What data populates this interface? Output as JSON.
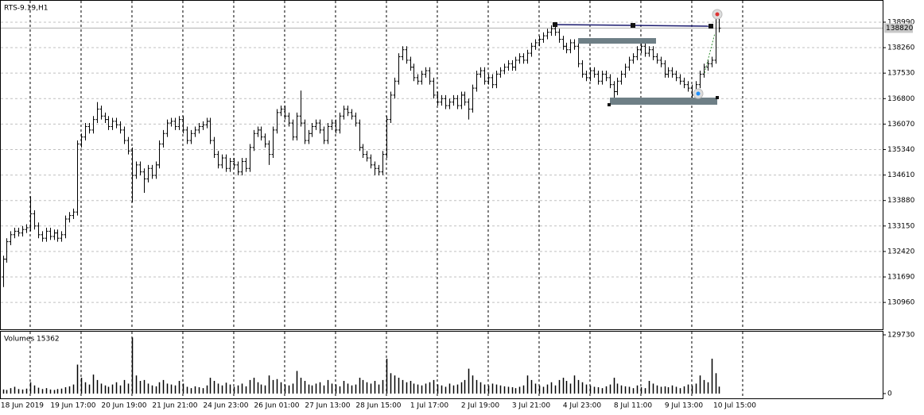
{
  "chart_data": {
    "type": "ohlc",
    "title": "RTS-9.19,H1",
    "volume_title": "Volumes 15362",
    "current_price": 138820,
    "ylim": [
      130190,
      139580
    ],
    "yticks": [
      130960,
      131690,
      132420,
      133150,
      133880,
      134610,
      135340,
      136070,
      136800,
      137530,
      138260,
      138990
    ],
    "volume_ylim": [
      0,
      129730
    ],
    "volume_yticks": [
      0,
      129730
    ],
    "grid": true,
    "color": "#000000",
    "categories": [
      null,
      null,
      null,
      null,
      null,
      null,
      null,
      "18 Jun 2019",
      null,
      null,
      null,
      null,
      null,
      null,
      null,
      null,
      null,
      null,
      null,
      null,
      "19 Jun 17:00",
      null,
      null,
      null,
      null,
      null,
      null,
      null,
      null,
      null,
      null,
      null,
      null,
      "20 Jun 19:00",
      null,
      null,
      null,
      null,
      null,
      null,
      null,
      null,
      null,
      null,
      null,
      null,
      "21 Jun 21:00",
      null,
      null,
      null,
      null,
      null,
      null,
      null,
      null,
      null,
      null,
      null,
      null,
      "24 Jun 23:00",
      null,
      null,
      null,
      null,
      null,
      null,
      null,
      null,
      null,
      null,
      null,
      null,
      "26 Jun 01:00",
      null,
      null,
      null,
      null,
      null,
      null,
      null,
      null,
      null,
      null,
      null,
      null,
      "27 Jun 13:00",
      null,
      null,
      null,
      null,
      null,
      null,
      null,
      null,
      null,
      null,
      null,
      null,
      "28 Jun 15:00",
      null,
      null,
      null,
      null,
      null,
      null,
      null,
      null,
      null,
      null,
      null,
      null,
      "1 Jul 17:00",
      null,
      null,
      null,
      null,
      null,
      null,
      null,
      null,
      null,
      null,
      null,
      null,
      "2 Jul 19:00",
      null,
      null,
      null,
      null,
      null,
      null,
      null,
      null,
      null,
      null,
      null,
      null,
      "3 Jul 21:00",
      null,
      null,
      null,
      null,
      null,
      null,
      null,
      null,
      null,
      null,
      null,
      null,
      "4 Jul 23:00",
      null,
      null,
      null,
      null,
      null,
      null,
      null,
      null,
      null,
      null,
      null,
      null,
      "8 Jul 11:00",
      null,
      null,
      null,
      null,
      null,
      null,
      null,
      null,
      null,
      null,
      null,
      null,
      "9 Jul 13:00",
      null,
      null,
      null,
      null,
      null,
      null,
      null,
      null,
      null,
      null,
      null,
      null,
      "10 Jul 15:00"
    ],
    "open": [
      131690,
      132200,
      132700,
      132900,
      133000,
      132950,
      133050,
      133100,
      133500,
      133150,
      132900,
      132800,
      133000,
      132850,
      132950,
      132800,
      132900,
      133350,
      133450,
      133550,
      135500,
      135700,
      136000,
      135900,
      136200,
      136500,
      136300,
      136200,
      136000,
      136150,
      136050,
      135900,
      135600,
      135300,
      134600,
      134900,
      134700,
      134500,
      134800,
      134600,
      134900,
      135500,
      135800,
      136100,
      136150,
      136000,
      136200,
      135900,
      135600,
      135800,
      135900,
      136000,
      136050,
      136150,
      135600,
      135200,
      134900,
      135100,
      134800,
      135000,
      134900,
      134700,
      135000,
      134800,
      135400,
      135800,
      135900,
      135700,
      135500,
      135200,
      135900,
      136400,
      136500,
      136300,
      136100,
      135700,
      136300,
      136100,
      135600,
      135800,
      136000,
      136100,
      135900,
      135600,
      136000,
      136100,
      135900,
      136300,
      136500,
      136400,
      136300,
      136100,
      135400,
      135200,
      135100,
      134900,
      134800,
      134700,
      135200,
      136200,
      136900,
      137300,
      138000,
      138200,
      137900,
      137700,
      137400,
      137300,
      137500,
      137600,
      137300,
      136900,
      136700,
      136800,
      136600,
      136700,
      136800,
      136600,
      136900,
      136700,
      136500,
      137100,
      137500,
      137600,
      137300,
      137400,
      137200,
      137500,
      137600,
      137700,
      137800,
      137700,
      137900,
      138000,
      137900,
      138100,
      138300,
      138400,
      138500,
      138600,
      138700,
      138800,
      138700,
      138500,
      138300,
      138200,
      138400,
      138300,
      137800,
      137500,
      137400,
      137600,
      137500,
      137300,
      137500,
      137400,
      137200,
      137000,
      137300,
      137500,
      137700,
      137900,
      138000,
      138200,
      138300,
      138100,
      138200,
      138000,
      137900,
      137800,
      137500,
      137600,
      137500,
      137400,
      137300,
      137200,
      137100,
      136900,
      137200,
      137500,
      137700,
      137800,
      137900,
      139100,
      null,
      null,
      null,
      null,
      null,
      null
    ],
    "high": [
      132300,
      132800,
      133000,
      133100,
      133100,
      133150,
      133200,
      134000,
      133600,
      133250,
      133000,
      133100,
      133100,
      133050,
      133050,
      133000,
      133450,
      133550,
      133650,
      135600,
      135800,
      136100,
      136100,
      136300,
      136700,
      136600,
      136400,
      136300,
      136250,
      136250,
      136150,
      136000,
      135700,
      135400,
      135000,
      135000,
      134800,
      134900,
      134900,
      135000,
      135600,
      135900,
      136200,
      136250,
      136250,
      136300,
      136300,
      136000,
      135900,
      136000,
      136100,
      136150,
      136250,
      136250,
      135700,
      135300,
      135200,
      135200,
      135100,
      135100,
      135000,
      135100,
      135100,
      135500,
      135900,
      136000,
      136000,
      135800,
      135600,
      136000,
      136500,
      136600,
      136600,
      136400,
      136200,
      136400,
      137030,
      136200,
      135900,
      136100,
      136200,
      136200,
      136000,
      136100,
      136200,
      136200,
      136400,
      136600,
      136600,
      136500,
      136400,
      136200,
      135500,
      135300,
      135200,
      135000,
      134900,
      135300,
      136300,
      137000,
      137400,
      138100,
      138300,
      138300,
      138000,
      137800,
      137500,
      137600,
      137700,
      137700,
      137400,
      137000,
      136900,
      136900,
      136800,
      136900,
      136900,
      137000,
      137000,
      136800,
      137200,
      137600,
      137700,
      137700,
      137500,
      137500,
      137600,
      137700,
      137800,
      137900,
      137900,
      138000,
      138100,
      138100,
      138200,
      138400,
      138500,
      138600,
      138700,
      138800,
      138900,
      138900,
      138800,
      138600,
      138400,
      138500,
      138500,
      138400,
      137900,
      137600,
      137700,
      137700,
      137600,
      137600,
      137600,
      137500,
      137300,
      137400,
      137600,
      137800,
      138000,
      138100,
      138300,
      138400,
      138400,
      138300,
      138300,
      138100,
      138000,
      137900,
      137700,
      137700,
      137600,
      137500,
      137400,
      137300,
      137200,
      137300,
      137600,
      137800,
      137900,
      138000,
      139220,
      139150,
      null,
      null,
      null,
      null,
      null,
      null
    ],
    "low": [
      131400,
      132100,
      132600,
      132800,
      132850,
      132850,
      132950,
      133000,
      133050,
      132800,
      132700,
      132700,
      132750,
      132750,
      132700,
      132700,
      132800,
      133250,
      133350,
      133450,
      135400,
      135600,
      135800,
      135800,
      136100,
      136200,
      136100,
      135900,
      135900,
      135950,
      135800,
      135500,
      135200,
      133830,
      134500,
      134600,
      134100,
      134400,
      134500,
      134500,
      134800,
      135400,
      135700,
      136000,
      135900,
      135900,
      135800,
      135500,
      135500,
      135700,
      135800,
      135900,
      135950,
      135500,
      135100,
      134800,
      134800,
      134700,
      134700,
      134800,
      134600,
      134600,
      134700,
      134700,
      135300,
      135700,
      135600,
      135400,
      134900,
      135100,
      135800,
      136300,
      136200,
      136000,
      135600,
      135600,
      136000,
      135500,
      135500,
      135700,
      135900,
      135800,
      135500,
      135500,
      135900,
      135800,
      135800,
      136200,
      136300,
      136200,
      136000,
      135300,
      135100,
      135000,
      134800,
      134600,
      134600,
      134600,
      135100,
      136100,
      136800,
      137200,
      137900,
      137800,
      137600,
      137300,
      137200,
      137200,
      137400,
      137200,
      136800,
      136600,
      136600,
      136500,
      136500,
      136600,
      136500,
      136500,
      136600,
      136200,
      136400,
      137000,
      137400,
      137200,
      137200,
      137100,
      137100,
      137400,
      137500,
      137600,
      137600,
      137600,
      137800,
      137800,
      137800,
      138000,
      138200,
      138300,
      138400,
      138500,
      138600,
      138600,
      138400,
      138200,
      138100,
      138100,
      138200,
      137700,
      137400,
      137300,
      137300,
      137400,
      137200,
      137200,
      137300,
      137100,
      136800,
      136900,
      137200,
      137400,
      137600,
      137800,
      137900,
      138100,
      138000,
      138000,
      137900,
      137800,
      137700,
      137400,
      137400,
      137400,
      137300,
      137200,
      137100,
      137000,
      136800,
      136800,
      137100,
      137400,
      137600,
      137700,
      137800,
      138700,
      null,
      null,
      null,
      null,
      null,
      null
    ],
    "close": [
      132200,
      132700,
      132900,
      133000,
      132950,
      133050,
      133100,
      133500,
      133150,
      132900,
      132800,
      133000,
      132850,
      132950,
      132800,
      132900,
      133350,
      133450,
      133550,
      135500,
      135700,
      136000,
      135900,
      136200,
      136500,
      136300,
      136200,
      136000,
      136150,
      136050,
      135900,
      135600,
      135300,
      134600,
      134900,
      134700,
      134500,
      134800,
      134600,
      134900,
      135500,
      135800,
      136100,
      136150,
      136000,
      136200,
      135900,
      135600,
      135800,
      135900,
      136000,
      136050,
      136150,
      135600,
      135200,
      134900,
      135100,
      134800,
      135000,
      134900,
      134700,
      135000,
      134800,
      135400,
      135800,
      135900,
      135700,
      135500,
      135200,
      135900,
      136400,
      136500,
      136300,
      136100,
      135700,
      136300,
      136100,
      135600,
      135800,
      136000,
      136100,
      135900,
      135600,
      136000,
      136100,
      135900,
      136300,
      136500,
      136400,
      136300,
      136100,
      135400,
      135200,
      135100,
      134900,
      134800,
      134700,
      135200,
      136200,
      136900,
      137300,
      138000,
      138200,
      137900,
      137700,
      137400,
      137300,
      137500,
      137600,
      137300,
      136900,
      136700,
      136800,
      136600,
      136700,
      136800,
      136600,
      136900,
      136700,
      136500,
      137100,
      137500,
      137600,
      137300,
      137400,
      137200,
      137500,
      137600,
      137700,
      137800,
      137700,
      137900,
      138000,
      137900,
      138100,
      138300,
      138400,
      138500,
      138600,
      138700,
      138800,
      138700,
      138500,
      138300,
      138200,
      138400,
      138300,
      137800,
      137500,
      137400,
      137600,
      137500,
      137300,
      137500,
      137400,
      137200,
      137000,
      137300,
      137500,
      137700,
      137900,
      138000,
      138200,
      138300,
      138100,
      138200,
      138000,
      137900,
      137800,
      137500,
      137600,
      137500,
      137400,
      137300,
      137200,
      137100,
      136900,
      137200,
      137500,
      137700,
      137800,
      137900,
      139100,
      138820,
      null,
      null,
      null,
      null,
      null,
      null
    ],
    "volume": [
      9000,
      8000,
      12000,
      15000,
      10000,
      9000,
      11000,
      25000,
      18000,
      13000,
      10000,
      12000,
      9000,
      8000,
      10000,
      11000,
      14000,
      16000,
      20000,
      64000,
      35000,
      25000,
      20000,
      42000,
      30000,
      22000,
      18000,
      15000,
      20000,
      25000,
      18000,
      30000,
      22000,
      124000,
      40000,
      28000,
      30000,
      22000,
      18000,
      16000,
      25000,
      30000,
      22000,
      20000,
      18000,
      28000,
      22000,
      15000,
      12000,
      16000,
      14000,
      12000,
      18000,
      35000,
      28000,
      22000,
      18000,
      24000,
      20000,
      15000,
      18000,
      22000,
      16000,
      30000,
      35000,
      25000,
      20000,
      18000,
      40000,
      30000,
      32000,
      25000,
      20000,
      18000,
      22000,
      50000,
      35000,
      28000,
      20000,
      18000,
      22000,
      25000,
      18000,
      30000,
      22000,
      20000,
      16000,
      28000,
      22000,
      18000,
      20000,
      35000,
      30000,
      25000,
      22000,
      28000,
      20000,
      30000,
      77000,
      45000,
      40000,
      35000,
      30000,
      25000,
      28000,
      22000,
      20000,
      18000,
      22000,
      25000,
      30000,
      20000,
      18000,
      15000,
      22000,
      18000,
      20000,
      25000,
      30000,
      55000,
      40000,
      30000,
      25000,
      20000,
      18000,
      22000,
      20000,
      18000,
      16000,
      15000,
      14000,
      12000,
      15000,
      18000,
      40000,
      30000,
      22000,
      18000,
      15000,
      20000,
      25000,
      18000,
      30000,
      35000,
      28000,
      22000,
      40000,
      30000,
      25000,
      20000,
      18000,
      15000,
      14000,
      12000,
      16000,
      20000,
      35000,
      22000,
      18000,
      16000,
      15000,
      12000,
      18000,
      14000,
      12000,
      28000,
      22000,
      18000,
      15000,
      16000,
      14000,
      18000,
      15000,
      12000,
      16000,
      20000,
      18000,
      22000,
      40000,
      30000,
      25000,
      77000,
      45000,
      15362,
      null,
      null,
      null,
      null,
      null,
      null
    ]
  }
}
